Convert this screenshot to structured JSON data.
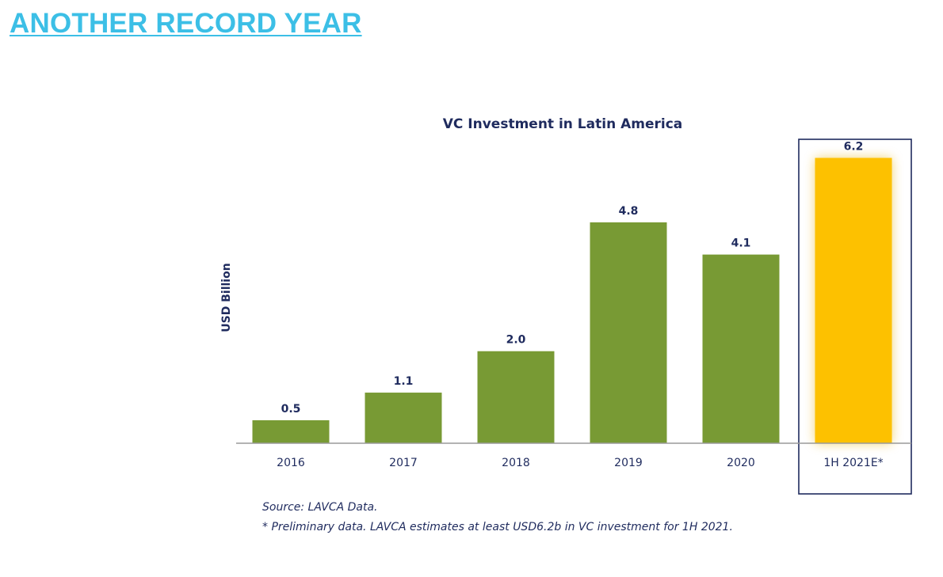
{
  "page": {
    "heading": "ANOTHER RECORD YEAR"
  },
  "chart_data": {
    "type": "bar",
    "title": "VC Investment in Latin America",
    "ylabel": "USD Billion",
    "xlabel": "",
    "categories": [
      "2016",
      "2017",
      "2018",
      "2019",
      "2020",
      "1H 2021E*"
    ],
    "values": [
      0.5,
      1.1,
      2.0,
      4.8,
      4.1,
      6.2
    ],
    "value_labels": [
      "0.5",
      "1.1",
      "2.0",
      "4.8",
      "4.1",
      "6.2"
    ],
    "ylim": [
      0,
      7
    ],
    "grid": false,
    "highlight_index": 5,
    "colors": {
      "bar": "#789a34",
      "highlight": "#fdc100",
      "text": "#1f2b5e",
      "axis": "#9a9a9a"
    },
    "notes": [
      "Source: LAVCA Data.",
      "* Preliminary data. LAVCA estimates at least USD6.2b in VC investment for 1H 2021."
    ]
  }
}
